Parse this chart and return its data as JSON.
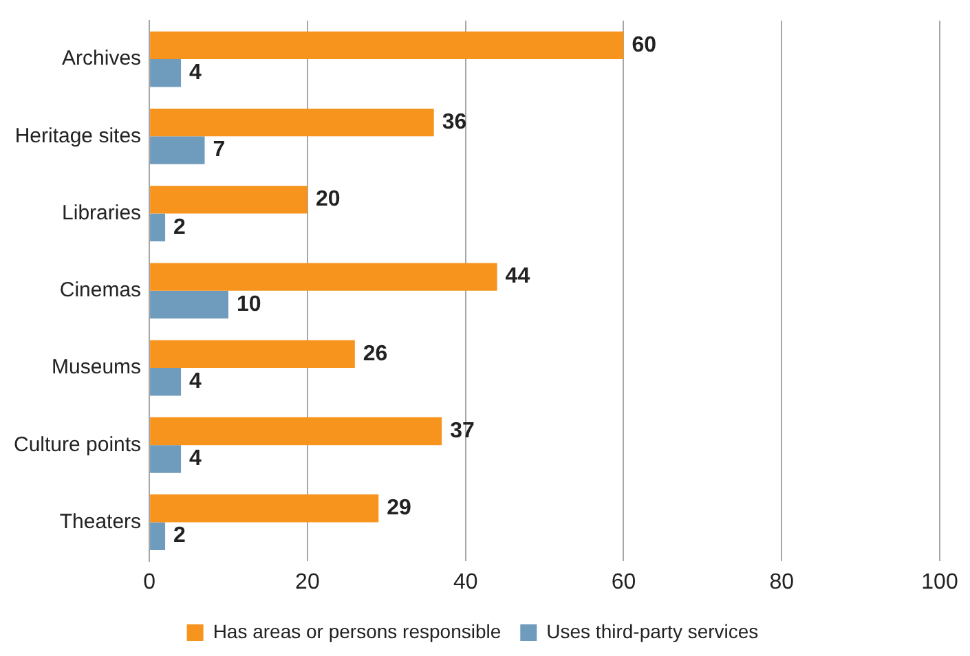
{
  "chart_data": {
    "type": "bar",
    "orientation": "horizontal",
    "categories": [
      "Archives",
      "Heritage sites",
      "Libraries",
      "Cinemas",
      "Museums",
      "Culture points",
      "Theaters"
    ],
    "series": [
      {
        "name": "Has areas or persons responsible",
        "color": "#f7941d",
        "values": [
          60,
          36,
          20,
          44,
          26,
          37,
          29
        ]
      },
      {
        "name": "Uses third-party services",
        "color": "#6f9bbd",
        "values": [
          4,
          7,
          2,
          10,
          4,
          4,
          2
        ]
      }
    ],
    "xlim": [
      0,
      100
    ],
    "xticks": [
      0,
      20,
      40,
      60,
      80,
      100
    ],
    "grid": "x",
    "legend": "bottom",
    "data_labels": true
  }
}
